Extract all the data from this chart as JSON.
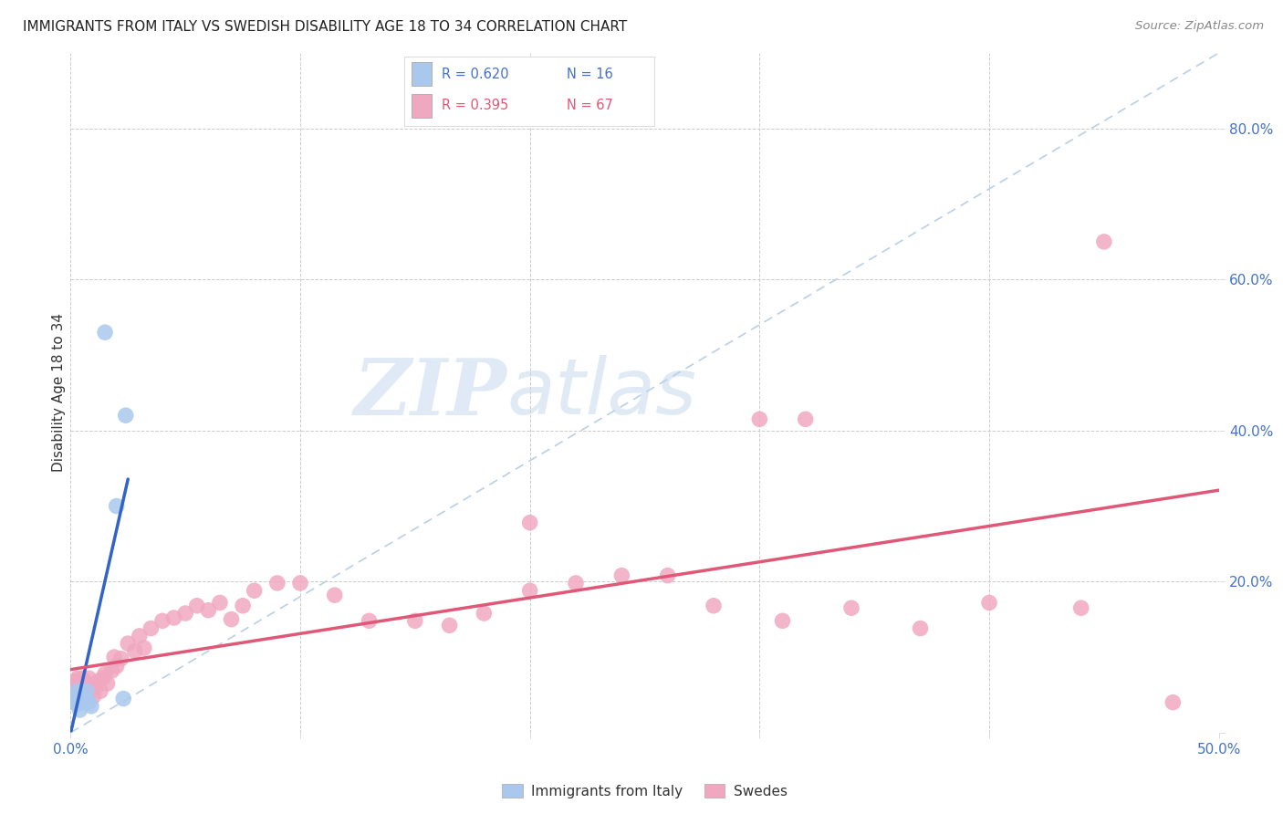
{
  "title": "IMMIGRANTS FROM ITALY VS SWEDISH DISABILITY AGE 18 TO 34 CORRELATION CHART",
  "source": "Source: ZipAtlas.com",
  "ylabel": "Disability Age 18 to 34",
  "xlim": [
    0.0,
    0.5
  ],
  "ylim": [
    0.0,
    0.9
  ],
  "xticks": [
    0.0,
    0.1,
    0.2,
    0.3,
    0.4,
    0.5
  ],
  "yticks": [
    0.0,
    0.2,
    0.4,
    0.6,
    0.8
  ],
  "xticklabels_show": [
    "0.0%",
    "",
    "",
    "",
    "",
    "50.0%"
  ],
  "right_yticklabels": [
    "",
    "20.0%",
    "40.0%",
    "60.0%",
    "80.0%"
  ],
  "blue_scatter_color": "#aac8ee",
  "pink_scatter_color": "#f0a8c0",
  "blue_line_color": "#3264c8",
  "pink_line_color": "#e05878",
  "dash_line_color": "#b8d0e8",
  "watermark_zip": "ZIP",
  "watermark_atlas": "atlas",
  "legend_r1": "R = 0.620",
  "legend_n1": "N = 16",
  "legend_r2": "R = 0.395",
  "legend_n2": "N = 67",
  "legend_label1": "Immigrants from Italy",
  "legend_label2": "Swedes",
  "legend_color1": "#4472C4",
  "legend_color2": "#e05878",
  "italy_x": [
    0.001,
    0.002,
    0.002,
    0.003,
    0.003,
    0.004,
    0.004,
    0.005,
    0.006,
    0.007,
    0.008,
    0.009,
    0.015,
    0.02,
    0.023,
    0.024
  ],
  "italy_y": [
    0.04,
    0.042,
    0.05,
    0.038,
    0.055,
    0.045,
    0.03,
    0.04,
    0.048,
    0.055,
    0.04,
    0.035,
    0.53,
    0.3,
    0.045,
    0.42
  ],
  "sweden_x": [
    0.001,
    0.001,
    0.002,
    0.002,
    0.002,
    0.003,
    0.003,
    0.003,
    0.004,
    0.004,
    0.005,
    0.005,
    0.005,
    0.006,
    0.006,
    0.007,
    0.007,
    0.008,
    0.008,
    0.009,
    0.01,
    0.011,
    0.012,
    0.013,
    0.014,
    0.015,
    0.016,
    0.018,
    0.019,
    0.02,
    0.022,
    0.025,
    0.028,
    0.03,
    0.032,
    0.035,
    0.04,
    0.045,
    0.05,
    0.055,
    0.06,
    0.065,
    0.07,
    0.075,
    0.08,
    0.09,
    0.1,
    0.115,
    0.13,
    0.15,
    0.165,
    0.18,
    0.2,
    0.22,
    0.24,
    0.26,
    0.28,
    0.31,
    0.34,
    0.37,
    0.4,
    0.44,
    0.48,
    0.3,
    0.32,
    0.2,
    0.45
  ],
  "sweden_y": [
    0.06,
    0.048,
    0.055,
    0.068,
    0.045,
    0.05,
    0.062,
    0.072,
    0.048,
    0.068,
    0.042,
    0.058,
    0.072,
    0.052,
    0.068,
    0.045,
    0.06,
    0.062,
    0.072,
    0.055,
    0.048,
    0.06,
    0.068,
    0.055,
    0.072,
    0.078,
    0.065,
    0.082,
    0.1,
    0.088,
    0.098,
    0.118,
    0.108,
    0.128,
    0.112,
    0.138,
    0.148,
    0.152,
    0.158,
    0.168,
    0.162,
    0.172,
    0.15,
    0.168,
    0.188,
    0.198,
    0.198,
    0.182,
    0.148,
    0.148,
    0.142,
    0.158,
    0.188,
    0.198,
    0.208,
    0.208,
    0.168,
    0.148,
    0.165,
    0.138,
    0.172,
    0.165,
    0.04,
    0.415,
    0.415,
    0.278,
    0.65
  ],
  "background_color": "#ffffff"
}
